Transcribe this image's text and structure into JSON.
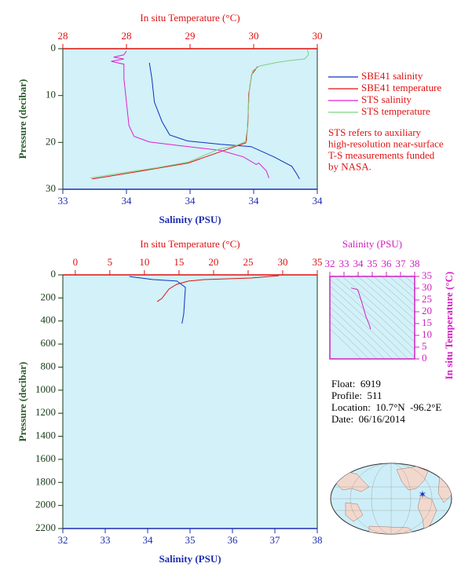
{
  "chart_data": [
    {
      "type": "profile",
      "x2label": "In situ Temperature (°C)",
      "xlabel": "Salinity (PSU)",
      "ylabel": "Pressure (decibar)",
      "x2lim": [
        27.6,
        30.2
      ],
      "x2ticks": [
        {
          "value": 27.6,
          "label": "28"
        },
        {
          "value": 28.25,
          "label": "28"
        },
        {
          "value": 28.9,
          "label": "29"
        },
        {
          "value": 29.55,
          "label": "30"
        },
        {
          "value": 30.2,
          "label": "30"
        }
      ],
      "xlim": [
        33.4,
        34.4
      ],
      "xticks": [
        {
          "value": 33.4,
          "label": "33"
        },
        {
          "value": 33.65,
          "label": "34"
        },
        {
          "value": 33.9,
          "label": "34"
        },
        {
          "value": 34.15,
          "label": "34"
        },
        {
          "value": 34.4,
          "label": "34"
        }
      ],
      "ylim": [
        0,
        30
      ],
      "yticks": [
        0,
        10,
        20,
        30
      ],
      "invert_y": true,
      "xaxis_color": "#1f2fb0",
      "x2axis_color": "#e01010",
      "background": "#d2f1f8",
      "legend": "right",
      "series": [
        {
          "name": "SBE41 salinity",
          "color": "#1030c0",
          "axis": "x",
          "pressure": [
            3.0,
            6.4,
            11.4,
            15.6,
            18.4,
            19.7,
            20.4,
            20.9,
            23.1,
            25.1,
            26.8,
            27.8
          ],
          "values": [
            33.74,
            33.75,
            33.76,
            33.79,
            33.82,
            33.89,
            34.02,
            34.14,
            34.23,
            34.3,
            34.32,
            34.33
          ]
        },
        {
          "name": "SBE41 temperature",
          "color": "#e01010",
          "axis": "x2",
          "pressure": [
            3.8,
            5.5,
            9.7,
            16.4,
            20.1,
            21.4,
            24.4,
            26.1,
            27.8
          ],
          "values": [
            29.59,
            29.53,
            29.5,
            29.49,
            29.47,
            29.29,
            28.88,
            28.4,
            27.9
          ]
        },
        {
          "name": "STS salinity",
          "color": "#e020d0",
          "axis": "x",
          "pressure": [
            0.5,
            1.3,
            1.8,
            2.2,
            2.7,
            3.3,
            6.4,
            11.4,
            16.4,
            18.7,
            19.9,
            20.7,
            21.7,
            23.1,
            24.7,
            24.4,
            26.1,
            27.6
          ],
          "values": [
            33.65,
            33.64,
            33.6,
            33.64,
            33.59,
            33.64,
            33.64,
            33.65,
            33.66,
            33.68,
            33.74,
            33.86,
            34.02,
            34.11,
            34.16,
            34.17,
            34.2,
            34.21
          ]
        },
        {
          "name": "STS temperature",
          "color": "#80d080",
          "axis": "x2",
          "pressure": [
            0.2,
            1.3,
            2.2,
            2.5,
            3.0,
            3.7,
            4.7,
            8.0,
            14.7,
            19.7,
            20.7,
            21.4,
            24.2,
            25.4,
            26.4,
            27.6
          ],
          "values": [
            30.1,
            30.11,
            30.07,
            29.93,
            29.77,
            29.61,
            29.54,
            29.51,
            29.49,
            29.48,
            29.37,
            29.2,
            28.88,
            28.56,
            28.24,
            27.88
          ]
        }
      ],
      "annotation": [
        "STS refers to auxiliary",
        "high-resolution near-surface",
        "T-S measurements funded",
        "by NASA."
      ]
    },
    {
      "type": "profile",
      "x2label": "In situ Temperature (°C)",
      "xlabel": "Salinity (PSU)",
      "ylabel": "Pressure (decibar)",
      "x2lim": [
        -1.8,
        35
      ],
      "x2ticks": [
        0,
        5,
        10,
        15,
        20,
        25,
        30,
        35
      ],
      "xlim": [
        32,
        38
      ],
      "xticks": [
        32,
        33,
        34,
        35,
        36,
        37,
        38
      ],
      "ylim": [
        0,
        2200
      ],
      "yticks": [
        0,
        200,
        400,
        600,
        800,
        1000,
        1200,
        1400,
        1600,
        1800,
        2000,
        2200
      ],
      "invert_y": true,
      "xaxis_color": "#1f2fb0",
      "x2axis_color": "#e01010",
      "background": "#d2f1f8",
      "series": [
        {
          "color": "#1030c0",
          "axis": "x",
          "pressure": [
            14,
            41,
            54,
            109,
            341,
            422
          ],
          "values": [
            33.57,
            34.13,
            34.69,
            34.89,
            34.85,
            34.81
          ]
        },
        {
          "color": "#e01010",
          "axis": "x2",
          "pressure": [
            7,
            27,
            41,
            54,
            82,
            123,
            204,
            232
          ],
          "values": [
            29.45,
            25.47,
            18.65,
            16.38,
            14.68,
            13.54,
            12.52,
            11.84
          ]
        }
      ]
    },
    {
      "type": "ts",
      "xlabel": "Salinity (PSU)",
      "ylabel": "In situ Temperature (°C)",
      "xlim": [
        32,
        38
      ],
      "xticks": [
        32,
        33,
        34,
        35,
        36,
        37,
        38
      ],
      "ylim": [
        0,
        35
      ],
      "yticks": [
        0,
        5,
        10,
        15,
        20,
        25,
        30,
        35
      ],
      "axis_color": "#d020c0",
      "background": "#d2f1f8",
      "series": [
        {
          "color": "#d020c0",
          "x": [
            33.5,
            33.97,
            34.2,
            34.37,
            34.54,
            34.77,
            34.89
          ],
          "values": [
            30.1,
            29.4,
            25.2,
            21.7,
            18.2,
            14.7,
            12.6
          ]
        }
      ]
    }
  ],
  "info": [
    "Float:  6919",
    "Profile:  511",
    "Location:  10.7°N  -96.2°E",
    "Date:  06/16/2014"
  ]
}
